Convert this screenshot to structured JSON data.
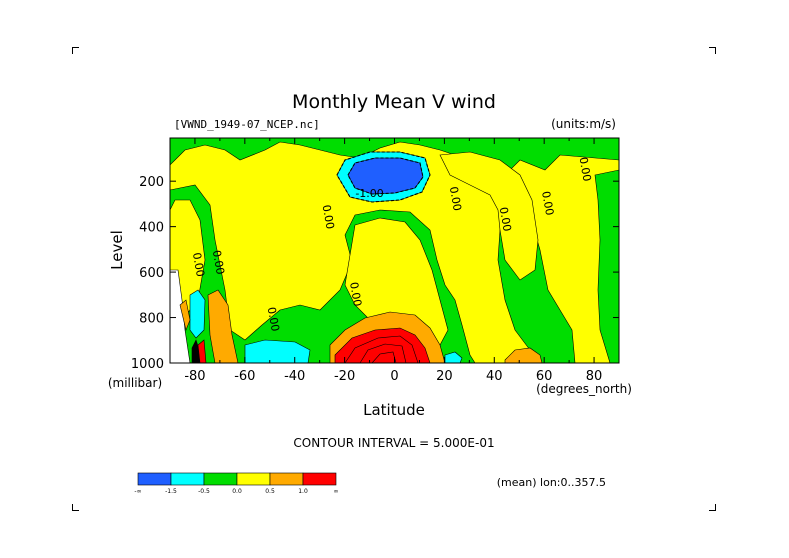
{
  "page": {
    "title": "Monthly Mean V wind",
    "dataset": "[VWND_1949-07_NCEP.nc]",
    "units": "(units:m/s)",
    "contour_interval": "CONTOUR INTERVAL = 5.000E-01",
    "region": "(mean) lon:0..357.5"
  },
  "chart_data": {
    "type": "heatmap",
    "title": "Monthly Mean V wind",
    "xlabel": "Latitude",
    "ylabel": "Level",
    "x_unit_label": "(degrees_north)",
    "y_unit_label": "(millibar)",
    "xlim": [
      -90,
      90
    ],
    "ylim": [
      1000,
      10
    ],
    "y_reversed": true,
    "x_ticks": [
      -80,
      -60,
      -40,
      -20,
      0,
      20,
      40,
      60,
      80
    ],
    "x_tick_labels": [
      "-80",
      "-60",
      "-40",
      "-20",
      "0",
      "20",
      "40",
      "60",
      "80"
    ],
    "y_ticks": [
      200,
      400,
      600,
      800,
      1000
    ],
    "y_tick_labels": [
      "200",
      "400",
      "600",
      "800",
      "1000"
    ],
    "contour_labels": [
      {
        "text": "-1.00",
        "x": -10,
        "y": 270
      },
      {
        "text": "0.00",
        "x": -80,
        "y": 570
      },
      {
        "text": "0.00",
        "x": -72,
        "y": 560
      },
      {
        "text": "0.00",
        "x": -28,
        "y": 360
      },
      {
        "text": "0.00",
        "x": -50,
        "y": 810
      },
      {
        "text": "0.00",
        "x": -17,
        "y": 700
      },
      {
        "text": "0.00",
        "x": 23,
        "y": 280
      },
      {
        "text": "0.00",
        "x": 43,
        "y": 370
      },
      {
        "text": "0.00",
        "x": 60,
        "y": 300
      },
      {
        "text": "0.00",
        "x": 75,
        "y": 150
      }
    ],
    "legend": {
      "boundaries": [
        "-∞",
        "-1.5",
        "-0.5",
        "0.0",
        "0.5",
        "1.0",
        "∞"
      ],
      "colors": [
        "#1f5fff",
        "#00ffff",
        "#00dd00",
        "#ffff00",
        "#ffaa00",
        "#ff0000"
      ]
    },
    "colors": {
      "strong_neg": "#1f5fff",
      "neg": "#00ffff",
      "near_zero_neg": "#00dd00",
      "near_zero_pos": "#ffff00",
      "pos": "#ffaa00",
      "strong_pos": "#ff0000"
    },
    "grid": false
  }
}
